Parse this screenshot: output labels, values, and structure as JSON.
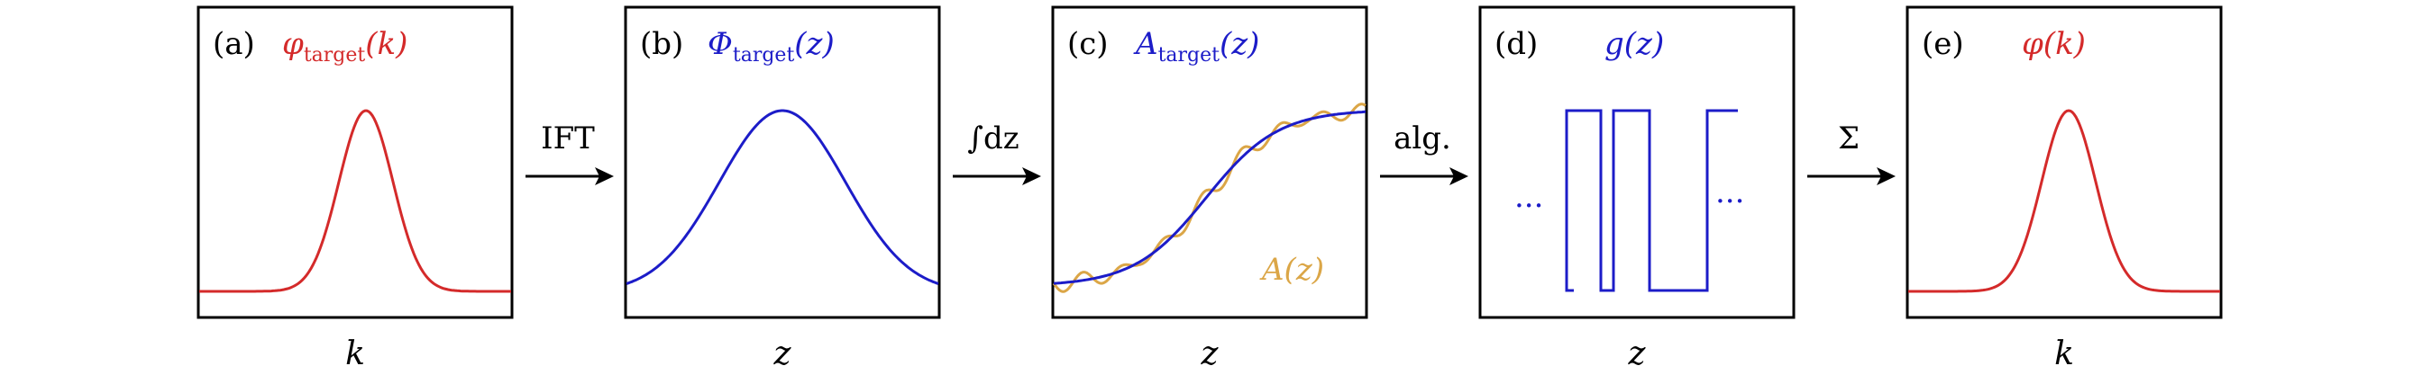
{
  "colors": {
    "red": "#d42a2a",
    "blue": "#1c1cc8",
    "gold": "#dba647",
    "black": "#000000"
  },
  "panels": [
    {
      "id": "a",
      "label": "(a)",
      "title_main": "φ",
      "title_sub": "target",
      "title_arg": "(k)",
      "title_color": "red",
      "xlabel": "k"
    },
    {
      "id": "b",
      "label": "(b)",
      "title_main": "Φ",
      "title_sub": "target",
      "title_arg": "(z)",
      "title_color": "blue",
      "xlabel": "z"
    },
    {
      "id": "c",
      "label": "(c)",
      "title_main": "A",
      "title_sub": "target",
      "title_arg": "(z)",
      "title_color": "blue",
      "xlabel": "z",
      "inner_label": "A(z)",
      "inner_label_color": "gold"
    },
    {
      "id": "d",
      "label": "(d)",
      "title_main": "g(z)",
      "title_sub": "",
      "title_arg": "",
      "title_color": "blue",
      "xlabel": "z",
      "ellipsis_left": "...",
      "ellipsis_right": "..."
    },
    {
      "id": "e",
      "label": "(e)",
      "title_main": "φ(k)",
      "title_sub": "",
      "title_arg": "",
      "title_color": "red",
      "xlabel": "k"
    }
  ],
  "arrows": [
    {
      "label": "IFT"
    },
    {
      "label": "∫dz"
    },
    {
      "label": "alg."
    },
    {
      "label": "Σ"
    }
  ]
}
